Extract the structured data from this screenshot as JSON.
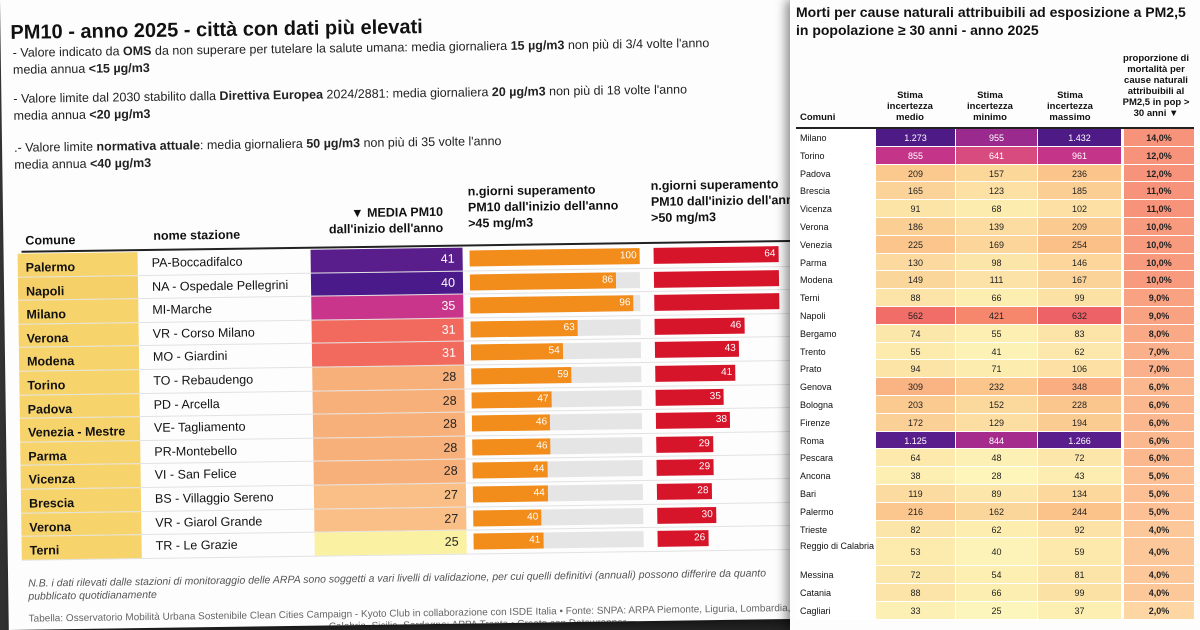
{
  "left": {
    "title": "PM10 - anno 2025 - città con dati più elevati",
    "notes": [
      {
        "pre": "- Valore indicato da ",
        "b1": "OMS",
        "mid": " da non superare per tutelare la salute umana: media giornaliera ",
        "b2": "15 µg/m3",
        "post": " non più di 3/4 volte l'anno",
        "line2pre": "media annua ",
        "line2b": "<15 µg/m3"
      },
      {
        "pre": "- Valore limite dal 2030 stabilito dalla ",
        "b1": "Direttiva Europea",
        "mid": " 2024/2881: media giornaliera ",
        "b2": "20 µg/m3",
        "post": " non più di 18 volte l'anno",
        "line2pre": "media annua ",
        "line2b": "<20 µg/m3"
      },
      {
        "pre": ".- Valore limite ",
        "b1": "normativa attuale",
        "mid": ": media giornaliera ",
        "b2": "50 µg/m3",
        "post": " non più di 35 volte l'anno",
        "line2pre": "media annua ",
        "line2b": "<40 µg/m3"
      }
    ],
    "headers": {
      "comune": "Comune",
      "stazione": "nome stazione",
      "media_l1": "▼ MEDIA PM10",
      "media_l2": "dall'inizio dell'anno",
      "g45_l1": "n.giorni superamento",
      "g45_l2": "PM10 dall'inizio dell'anno",
      "g45_l3": ">45 mg/m3",
      "g50_l1": "n.giorni superamento",
      "g50_l2": "PM10 dall'inizio dell'anno",
      "g50_l3": ">50 mg/m3"
    },
    "rows": [
      {
        "comune": "Palermo",
        "stazione": "PA-Boccadifalco",
        "media": "41",
        "g45": "100",
        "g50": "64",
        "media_color": "#5a1e8c",
        "comune_color": "#f7d36b"
      },
      {
        "comune": "Napoli",
        "stazione": "NA - Ospedale Pellegrini",
        "media": "40",
        "g45": "86",
        "g50": "",
        "media_color": "#4b1a8a",
        "comune_color": "#f5cf68"
      },
      {
        "comune": "Milano",
        "stazione": "MI-Marche",
        "media": "35",
        "g45": "96",
        "g50": "",
        "media_color": "#c9358a",
        "comune_color": "#f7d36b"
      },
      {
        "comune": "Verona",
        "stazione": "VR - Corso Milano",
        "media": "31",
        "g45": "63",
        "g50": "46",
        "media_color": "#f26a5e",
        "comune_color": "#f7d36b"
      },
      {
        "comune": "Modena",
        "stazione": "MO - Giardini",
        "media": "31",
        "g45": "54",
        "g50": "43",
        "media_color": "#f26a5e",
        "comune_color": "#f7d36b"
      },
      {
        "comune": "Torino",
        "stazione": "TO - Rebaudengo",
        "media": "28",
        "g45": "59",
        "g50": "41",
        "media_color": "#f8b07a",
        "comune_color": "#f7d36b"
      },
      {
        "comune": "Padova",
        "stazione": "PD - Arcella",
        "media": "28",
        "g45": "47",
        "g50": "35",
        "media_color": "#f8b07a",
        "comune_color": "#f7d36b"
      },
      {
        "comune": "Venezia - Mestre",
        "stazione": "VE- Tagliamento",
        "media": "28",
        "g45": "46",
        "g50": "38",
        "media_color": "#f8b07a",
        "comune_color": "#f7d36b"
      },
      {
        "comune": "Parma",
        "stazione": "PR-Montebello",
        "media": "28",
        "g45": "46",
        "g50": "29",
        "media_color": "#f8b07a",
        "comune_color": "#f7d36b"
      },
      {
        "comune": "Vicenza",
        "stazione": "VI - San Felice",
        "media": "28",
        "g45": "44",
        "g50": "29",
        "media_color": "#f8b07a",
        "comune_color": "#f7d36b"
      },
      {
        "comune": "Brescia",
        "stazione": "BS - Villaggio Sereno",
        "media": "27",
        "g45": "44",
        "g50": "28",
        "media_color": "#f9bf86",
        "comune_color": "#f7d36b"
      },
      {
        "comune": "Verona",
        "stazione": "VR - Giarol Grande",
        "media": "27",
        "g45": "40",
        "g50": "30",
        "media_color": "#f9bf86",
        "comune_color": "#f7d36b"
      },
      {
        "comune": "Terni",
        "stazione": "TR - Le Grazie",
        "media": "25",
        "g45": "41",
        "g50": "26",
        "media_color": "#fbf1a2",
        "comune_color": "#f7d36b"
      }
    ],
    "footnote": "N.B. i dati rilevati dalle stazioni di monitoraggio delle ARPA sono soggetti a vari livelli di validazione, per cui quelli definitivi (annuali) possono differire da quanto pubblicato quotidianamente",
    "source": "Tabella: Osservatorio Mobilità Urbana Sostenibile Clean Cities Campaign - Kyoto Club in collaborazione con ISDE Italia • Fonte: SNPA: ARPA Piemonte, Liguria, Lombardia, Veneto, Friuli",
    "source2": "Calabria, Sicilia, Sardegna; APPA Trento • Creato con Datawrapper"
  },
  "right": {
    "title": "Morti per cause naturali attribuibili ad esposizione a PM2,5 in popolazione ≥ 30 anni - anno 2025",
    "headers": {
      "comuni": "Comuni",
      "medio": "Stima incertezza medio",
      "minimo": "Stima incertezza minimo",
      "massimo": "Stima incertezza massimo",
      "prop": "proporzione di mortalità per cause naturali attribuibili al PM2,5 in pop > 30 anni ▼"
    },
    "rows": [
      {
        "c": "Milano",
        "m": "1.273",
        "n": "955",
        "x": "1.432",
        "p": "14,0%",
        "mc": "#4d1a86",
        "nc": "#9b2a8e",
        "xc": "#4d1a86",
        "pc": "#f7937a"
      },
      {
        "c": "Torino",
        "m": "855",
        "n": "641",
        "x": "961",
        "p": "12,0%",
        "mc": "#c4358a",
        "nc": "#d84b7e",
        "xc": "#c4358a",
        "pc": "#f7937a"
      },
      {
        "c": "Padova",
        "m": "209",
        "n": "157",
        "x": "236",
        "p": "12,0%",
        "mc": "#fbc98e",
        "nc": "#fbd79a",
        "xc": "#fbc48a",
        "pc": "#f7937a"
      },
      {
        "c": "Brescia",
        "m": "165",
        "n": "123",
        "x": "185",
        "p": "11,0%",
        "mc": "#fbd398",
        "nc": "#fce0a4",
        "xc": "#fbcf94",
        "pc": "#f7937a"
      },
      {
        "c": "Vicenza",
        "m": "91",
        "n": "68",
        "x": "102",
        "p": "11,0%",
        "mc": "#fce3a6",
        "nc": "#fcecae",
        "xc": "#fce0a4",
        "pc": "#f7937a"
      },
      {
        "c": "Verona",
        "m": "186",
        "n": "139",
        "x": "209",
        "p": "10,0%",
        "mc": "#fbce94",
        "nc": "#fcdca0",
        "xc": "#fbca90",
        "pc": "#f89a7e"
      },
      {
        "c": "Venezia",
        "m": "225",
        "n": "169",
        "x": "254",
        "p": "10,0%",
        "mc": "#fbc58c",
        "nc": "#fbd59a",
        "xc": "#fbc088",
        "pc": "#f89a7e"
      },
      {
        "c": "Parma",
        "m": "130",
        "n": "98",
        "x": "146",
        "p": "10,0%",
        "mc": "#fcd99e",
        "nc": "#fce5a8",
        "xc": "#fcd69a",
        "pc": "#f89a7e"
      },
      {
        "c": "Modena",
        "m": "149",
        "n": "111",
        "x": "167",
        "p": "10,0%",
        "mc": "#fbd69a",
        "nc": "#fce2a6",
        "xc": "#fbd298",
        "pc": "#f89a7e"
      },
      {
        "c": "Terni",
        "m": "88",
        "n": "66",
        "x": "99",
        "p": "9,0%",
        "mc": "#fce4a8",
        "nc": "#fcedb0",
        "xc": "#fce1a4",
        "pc": "#f9a282"
      },
      {
        "c": "Napoli",
        "m": "562",
        "n": "421",
        "x": "632",
        "p": "9,0%",
        "mc": "#f16d68",
        "nc": "#f7876c",
        "xc": "#ec6266",
        "pc": "#f9a282"
      },
      {
        "c": "Bergamo",
        "m": "74",
        "n": "55",
        "x": "83",
        "p": "8,0%",
        "mc": "#fce7aa",
        "nc": "#fdefb2",
        "xc": "#fce4a8",
        "pc": "#faa986"
      },
      {
        "c": "Trento",
        "m": "55",
        "n": "41",
        "x": "62",
        "p": "7,0%",
        "mc": "#fdebae",
        "nc": "#fdf2b6",
        "xc": "#fce8ac",
        "pc": "#fab08a"
      },
      {
        "c": "Prato",
        "m": "94",
        "n": "71",
        "x": "106",
        "p": "7,0%",
        "mc": "#fce3a6",
        "nc": "#fcecae",
        "xc": "#fce0a4",
        "pc": "#fab08a"
      },
      {
        "c": "Genova",
        "m": "309",
        "n": "232",
        "x": "348",
        "p": "6,0%",
        "mc": "#fab382",
        "nc": "#fbc58c",
        "xc": "#faad80",
        "pc": "#fbb88e"
      },
      {
        "c": "Bologna",
        "m": "203",
        "n": "152",
        "x": "228",
        "p": "6,0%",
        "mc": "#fbca90",
        "nc": "#fbd89c",
        "xc": "#fbc68e",
        "pc": "#fbb88e"
      },
      {
        "c": "Firenze",
        "m": "172",
        "n": "129",
        "x": "194",
        "p": "6,0%",
        "mc": "#fbd096",
        "nc": "#fcdea2",
        "xc": "#fbcc92",
        "pc": "#fbb88e"
      },
      {
        "c": "Roma",
        "m": "1.125",
        "n": "844",
        "x": "1.266",
        "p": "6,0%",
        "mc": "#5a1e8c",
        "nc": "#a52c8c",
        "xc": "#5a1e8c",
        "pc": "#fbb88e"
      },
      {
        "c": "Pescara",
        "m": "64",
        "n": "48",
        "x": "72",
        "p": "6,0%",
        "mc": "#fde9ac",
        "nc": "#fdf0b4",
        "xc": "#fce6aa",
        "pc": "#fbb88e"
      },
      {
        "c": "Ancona",
        "m": "38",
        "n": "28",
        "x": "43",
        "p": "5,0%",
        "mc": "#fdefb2",
        "nc": "#fdf5ba",
        "xc": "#fdedb0",
        "pc": "#fcc094"
      },
      {
        "c": "Bari",
        "m": "119",
        "n": "89",
        "x": "134",
        "p": "5,0%",
        "mc": "#fcdba0",
        "nc": "#fce6aa",
        "xc": "#fcd89c",
        "pc": "#fcc094"
      },
      {
        "c": "Palermo",
        "m": "216",
        "n": "162",
        "x": "244",
        "p": "5,0%",
        "mc": "#fbc78e",
        "nc": "#fbd69a",
        "xc": "#fbc38a",
        "pc": "#fcc094"
      },
      {
        "c": "Trieste",
        "m": "82",
        "n": "62",
        "x": "92",
        "p": "4,0%",
        "mc": "#fce5a8",
        "nc": "#fdeeb0",
        "xc": "#fce2a6",
        "pc": "#fcc89a"
      },
      {
        "c": "Reggio di Calabria",
        "m": "53",
        "n": "40",
        "x": "59",
        "p": "4,0%",
        "mc": "#fdebae",
        "nc": "#fdf3b8",
        "xc": "#fde9ac",
        "pc": "#fcc89a",
        "tall": true
      },
      {
        "c": "Messina",
        "m": "72",
        "n": "54",
        "x": "81",
        "p": "4,0%",
        "mc": "#fce7aa",
        "nc": "#fdefb2",
        "xc": "#fce4a8",
        "pc": "#fcc89a"
      },
      {
        "c": "Catania",
        "m": "88",
        "n": "66",
        "x": "99",
        "p": "4,0%",
        "mc": "#fce4a8",
        "nc": "#fcedb0",
        "xc": "#fce1a4",
        "pc": "#fcc89a"
      },
      {
        "c": "Cagliari",
        "m": "33",
        "n": "25",
        "x": "37",
        "p": "2,0%",
        "mc": "#fdf0b4",
        "nc": "#fdf6bc",
        "xc": "#fdeeb2",
        "pc": "#fdd6a4"
      }
    ]
  }
}
